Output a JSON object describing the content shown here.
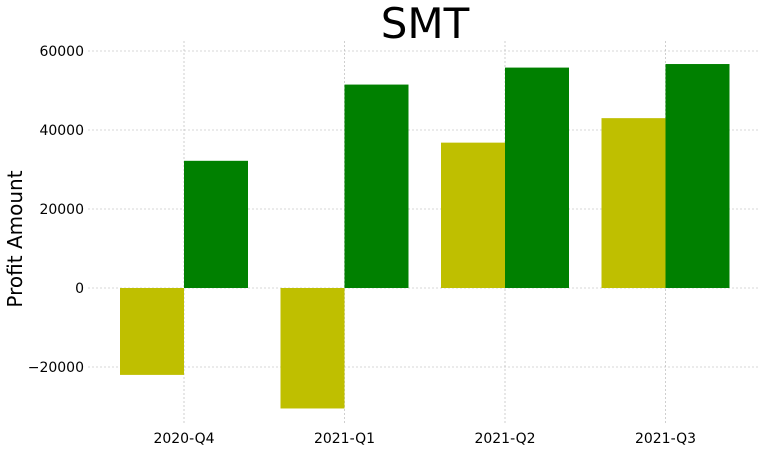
{
  "chart_data": {
    "type": "bar",
    "title": "SMT",
    "xlabel": "",
    "ylabel": "Profit Amount",
    "categories": [
      "2020-Q4",
      "2021-Q1",
      "2021-Q2",
      "2021-Q3"
    ],
    "series": [
      {
        "values": [
          -22000,
          -30500,
          36800,
          43000
        ],
        "color": "#bfbf00"
      },
      {
        "values": [
          32200,
          51500,
          55800,
          56700
        ],
        "color": "#008000"
      }
    ],
    "ylim": [
      -33000,
      61000
    ],
    "yticks": [
      -20000,
      0,
      20000,
      40000,
      60000
    ],
    "ytick_labels": [
      "−20000",
      "0",
      "20000",
      "40000",
      "60000"
    ],
    "grid": true,
    "legend": "none"
  }
}
